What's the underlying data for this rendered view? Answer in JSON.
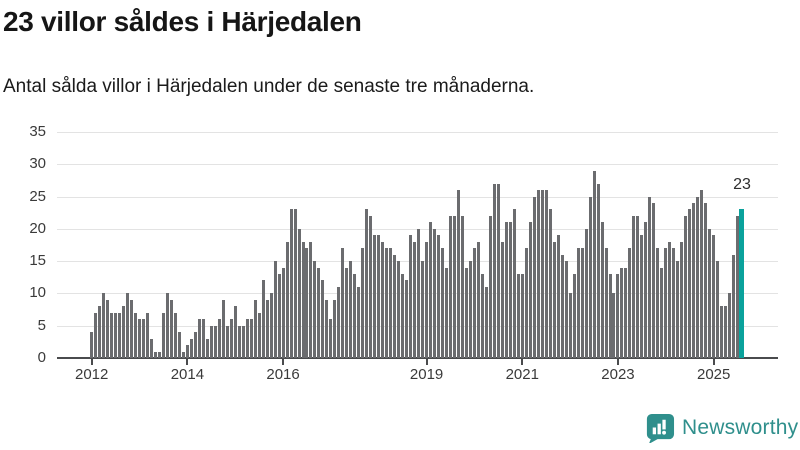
{
  "header": {
    "title": "23 villor såldes i Härjedalen",
    "subtitle": "Antal sålda villor i Härjedalen under de senaste tre månaderna."
  },
  "chart_data": {
    "type": "bar",
    "title": "23 villor såldes i Härjedalen",
    "subtitle": "Antal sålda villor i Härjedalen under de senaste tre månaderna.",
    "x_start_month": "2012-01",
    "x_end_month": "2025-08",
    "ylim": [
      0,
      35
    ],
    "y_ticks": [
      0,
      5,
      10,
      15,
      20,
      25,
      30,
      35
    ],
    "x_tick_labels": [
      "2012",
      "2014",
      "2016",
      "2019",
      "2021",
      "2023",
      "2025"
    ],
    "x_tick_month_indices": [
      0,
      24,
      48,
      84,
      108,
      132,
      156
    ],
    "grid": true,
    "legend": "none",
    "bar_color": "#6b6c6f",
    "highlight_color": "#0aa29c",
    "values_by_year": {
      "2012": [
        4,
        7,
        8,
        10,
        9,
        7,
        7,
        7,
        8,
        10,
        9,
        7
      ],
      "2013": [
        6,
        6,
        7,
        3,
        1,
        1,
        7,
        10,
        9,
        7,
        4,
        1
      ],
      "2014": [
        2,
        3,
        4,
        6,
        6,
        3,
        5,
        5,
        6,
        9,
        5,
        6
      ],
      "2015": [
        8,
        5,
        5,
        6,
        6,
        9,
        7,
        12,
        9,
        10,
        15,
        13
      ],
      "2016": [
        14,
        18,
        23,
        23,
        20,
        18,
        17,
        18,
        15,
        14,
        12,
        9
      ],
      "2017": [
        6,
        9,
        11,
        17,
        14,
        15,
        13,
        11,
        17,
        23,
        22,
        19
      ],
      "2018": [
        19,
        18,
        17,
        17,
        16,
        15,
        13,
        12,
        19,
        18,
        20,
        15
      ],
      "2019": [
        18,
        21,
        20,
        19,
        17,
        14,
        22,
        22,
        26,
        22,
        14,
        15
      ],
      "2020": [
        17,
        18,
        13,
        11,
        22,
        27,
        27,
        18,
        21,
        21,
        23,
        13
      ],
      "2021": [
        13,
        17,
        21,
        25,
        26,
        26,
        26,
        23,
        18,
        19,
        16,
        15
      ],
      "2022": [
        10,
        13,
        17,
        17,
        20,
        25,
        29,
        27,
        21,
        17,
        13,
        10
      ],
      "2023": [
        13,
        14,
        14,
        17,
        22,
        22,
        19,
        21,
        25,
        24,
        17,
        14
      ],
      "2024": [
        17,
        18,
        17,
        15,
        18,
        22,
        23,
        24,
        25,
        26,
        24,
        20
      ],
      "2025": [
        19,
        15,
        8,
        8,
        10,
        16,
        22,
        23
      ]
    },
    "highlight_last": true,
    "annotation": {
      "text": "23",
      "target_month": "2025-08"
    }
  },
  "footer": {
    "brand": "Newsworthy"
  },
  "colors": {
    "background": "#ffffff",
    "bar": "#6b6c6f",
    "highlight": "#0aa29c",
    "grid": "#e3e3e3",
    "axis": "#4a4b4d",
    "logo": "#2f8f8c",
    "text": "#161616"
  }
}
